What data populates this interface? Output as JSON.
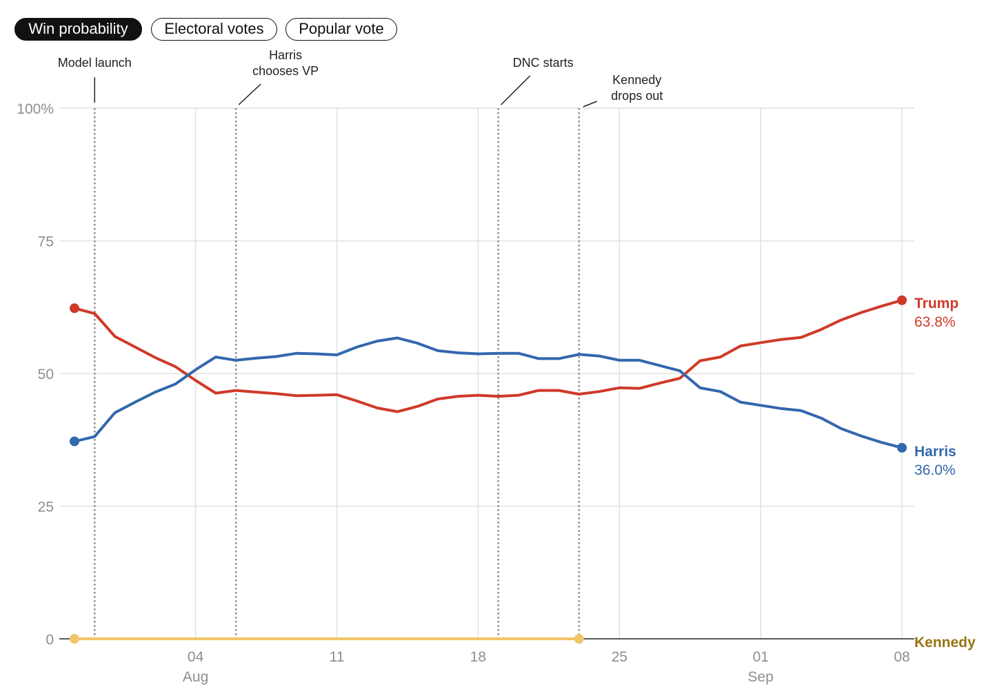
{
  "tabs": [
    {
      "label": "Win probability",
      "active": true
    },
    {
      "label": "Electoral votes",
      "active": false
    },
    {
      "label": "Popular vote",
      "active": false
    }
  ],
  "colors": {
    "trump": "#cf3a28",
    "harris": "#3367ad",
    "kennedy_line": "#f2c46b",
    "kennedy_label": "#9a7414",
    "grid": "#e1e1e1",
    "axis_text": "#8e8e8e",
    "event_line": "#8a8a8a"
  },
  "chart_data": {
    "type": "line",
    "title": "Win probability",
    "ylim": [
      0,
      100
    ],
    "y_ticks": [
      {
        "value": 100,
        "label": "100%"
      },
      {
        "value": 75,
        "label": "75"
      },
      {
        "value": 50,
        "label": "50"
      },
      {
        "value": 25,
        "label": "25"
      },
      {
        "value": 0,
        "label": "0"
      }
    ],
    "x_start_day": 0,
    "x_end_day": 41,
    "x_ticks": [
      {
        "day": 6,
        "label": "04",
        "sublabel": "Aug"
      },
      {
        "day": 13,
        "label": "11",
        "sublabel": ""
      },
      {
        "day": 20,
        "label": "18",
        "sublabel": ""
      },
      {
        "day": 27,
        "label": "25",
        "sublabel": ""
      },
      {
        "day": 34,
        "label": "01",
        "sublabel": "Sep"
      },
      {
        "day": 41,
        "label": "08",
        "sublabel": ""
      }
    ],
    "events": [
      {
        "day": 1,
        "lines": [
          "Model launch"
        ]
      },
      {
        "day": 8,
        "lines": [
          "Harris",
          "chooses VP"
        ]
      },
      {
        "day": 21,
        "lines": [
          "DNC starts"
        ]
      },
      {
        "day": 25,
        "lines": [
          "Kennedy",
          "drops out"
        ]
      }
    ],
    "series": [
      {
        "name": "Trump",
        "key": "trump",
        "end_label": "Trump",
        "end_value_label": "63.8%",
        "x": [
          0,
          1,
          2,
          3,
          4,
          5,
          6,
          7,
          8,
          9,
          10,
          11,
          12,
          13,
          14,
          15,
          16,
          17,
          18,
          19,
          20,
          21,
          22,
          23,
          24,
          25,
          26,
          27,
          28,
          29,
          30,
          31,
          32,
          33,
          34,
          35,
          36,
          37,
          38,
          39,
          40,
          41
        ],
        "values": [
          62.3,
          61.3,
          57.0,
          55.0,
          53.0,
          51.3,
          48.7,
          46.3,
          46.8,
          46.5,
          46.2,
          45.8,
          45.9,
          46.0,
          44.8,
          43.5,
          42.8,
          43.8,
          45.2,
          45.7,
          45.9,
          45.7,
          45.9,
          46.8,
          46.8,
          46.1,
          46.6,
          47.3,
          47.2,
          48.2,
          49.1,
          52.4,
          53.1,
          55.2,
          55.8,
          56.4,
          56.8,
          58.3,
          60.1,
          61.5,
          62.7,
          63.8
        ]
      },
      {
        "name": "Harris",
        "key": "harris",
        "end_label": "Harris",
        "end_value_label": "36.0%",
        "x": [
          0,
          1,
          2,
          3,
          4,
          5,
          6,
          7,
          8,
          9,
          10,
          11,
          12,
          13,
          14,
          15,
          16,
          17,
          18,
          19,
          20,
          21,
          22,
          23,
          24,
          25,
          26,
          27,
          28,
          29,
          30,
          31,
          32,
          33,
          34,
          35,
          36,
          37,
          38,
          39,
          40,
          41
        ],
        "values": [
          37.2,
          38.1,
          42.6,
          44.6,
          46.5,
          48.0,
          50.7,
          53.1,
          52.5,
          52.9,
          53.2,
          53.8,
          53.7,
          53.5,
          55.0,
          56.1,
          56.7,
          55.7,
          54.3,
          53.9,
          53.7,
          53.8,
          53.8,
          52.8,
          52.8,
          53.6,
          53.3,
          52.5,
          52.5,
          51.5,
          50.5,
          47.3,
          46.6,
          44.6,
          44.0,
          43.4,
          43.0,
          41.6,
          39.6,
          38.2,
          37.0,
          36.0
        ]
      },
      {
        "name": "Kennedy",
        "key": "kennedy",
        "end_label": "Kennedy",
        "end_value_label": "",
        "x": [
          0,
          25
        ],
        "values": [
          0,
          0
        ]
      }
    ]
  }
}
